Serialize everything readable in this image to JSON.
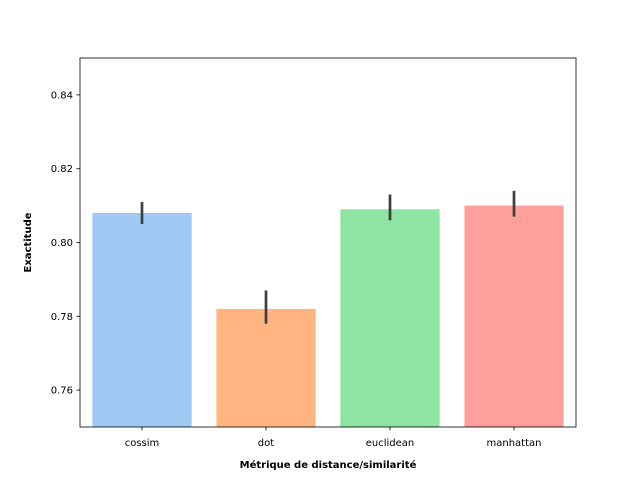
{
  "chart_data": {
    "type": "bar",
    "title": "",
    "xlabel": "Métrique de distance/similarité",
    "ylabel": "Exactitude",
    "categories": [
      "cossim",
      "dot",
      "euclidean",
      "manhattan"
    ],
    "values": [
      0.808,
      0.782,
      0.809,
      0.81
    ],
    "error_low": [
      0.805,
      0.778,
      0.806,
      0.807
    ],
    "error_high": [
      0.811,
      0.787,
      0.813,
      0.814
    ],
    "colors": [
      "#a1c9f4",
      "#ffb482",
      "#8de5a1",
      "#ff9f9b"
    ],
    "ylim": [
      0.75,
      0.85
    ],
    "yticks": [
      0.76,
      0.78,
      0.8,
      0.82,
      0.84
    ],
    "ytick_labels": [
      "0.76",
      "0.78",
      "0.80",
      "0.82",
      "0.84"
    ],
    "grid": false,
    "legend": "none"
  }
}
